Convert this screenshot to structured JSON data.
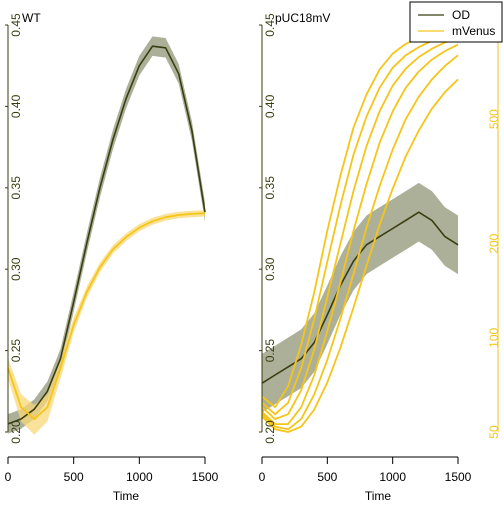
{
  "colors": {
    "od": "#3a3d10",
    "od_band": "#8a8e6e",
    "venus": "#f5c518",
    "venus_band": "#f8d878"
  },
  "legend": {
    "items": [
      {
        "label": "OD",
        "color": "#3a3d10"
      },
      {
        "label": "mVenus",
        "color": "#f5c518"
      }
    ],
    "placement": "top-right"
  },
  "chart_data": [
    {
      "type": "line",
      "title": "WT",
      "xlabel": "Time",
      "xlim": [
        0,
        1500
      ],
      "x_ticks": [
        "0",
        "500",
        "1000",
        "1500"
      ],
      "od_axis": {
        "lim": [
          0.2,
          0.45
        ],
        "ticks": [
          "0.20",
          "0.25",
          "0.30",
          "0.35",
          "0.40",
          "0.45"
        ]
      },
      "venus_axis": {
        "lim": [
          50,
          1000
        ]
      },
      "series": [
        {
          "name": "OD",
          "x": [
            0,
            100,
            200,
            300,
            400,
            500,
            600,
            700,
            800,
            900,
            1000,
            1100,
            1200,
            1300,
            1400,
            1500
          ],
          "y": [
            0.205,
            0.208,
            0.214,
            0.225,
            0.245,
            0.28,
            0.316,
            0.35,
            0.38,
            0.405,
            0.425,
            0.437,
            0.436,
            0.42,
            0.385,
            0.335
          ],
          "band": 0.006
        },
        {
          "name": "mVenus",
          "x": [
            0,
            100,
            200,
            300,
            400,
            500,
            600,
            700,
            800,
            900,
            1000,
            1100,
            1200,
            1300,
            1400,
            1500
          ],
          "y": [
            80,
            60,
            55,
            60,
            80,
            110,
            140,
            168,
            192,
            210,
            225,
            236,
            243,
            247,
            249,
            250
          ],
          "band": 6
        }
      ]
    },
    {
      "type": "line",
      "title": "pUC18mV",
      "xlabel": "Time",
      "xlim": [
        0,
        1500
      ],
      "x_ticks": [
        "0",
        "500",
        "1000",
        "1500"
      ],
      "od_axis": {
        "lim": [
          0.2,
          0.45
        ],
        "ticks": [
          "0.20",
          "0.25",
          "0.30",
          "0.35",
          "0.40",
          "0.45"
        ]
      },
      "venus_axis": {
        "lim": [
          50,
          1000
        ],
        "ticks": [
          "50",
          "100",
          "200",
          "500",
          "1000"
        ]
      },
      "series": [
        {
          "name": "OD",
          "x": [
            0,
            100,
            200,
            300,
            400,
            500,
            600,
            700,
            800,
            900,
            1000,
            1100,
            1200,
            1300,
            1400,
            1500
          ],
          "y": [
            0.23,
            0.235,
            0.24,
            0.245,
            0.255,
            0.272,
            0.29,
            0.305,
            0.315,
            0.32,
            0.325,
            0.33,
            0.335,
            0.33,
            0.32,
            0.315
          ],
          "band": 0.018
        },
        {
          "name": "mVenus",
          "x": [
            0,
            100,
            200,
            300,
            400,
            500,
            600,
            700,
            800,
            900,
            1000,
            1100,
            1200,
            1300,
            1400,
            1500
          ],
          "y": [
            65,
            60,
            70,
            95,
            140,
            220,
            330,
            470,
            600,
            720,
            810,
            870,
            910,
            940,
            960,
            975
          ]
        },
        {
          "name": "mVenus",
          "x": [
            0,
            100,
            200,
            300,
            400,
            500,
            600,
            700,
            800,
            900,
            1000,
            1100,
            1200,
            1300,
            1400,
            1500
          ],
          "y": [
            62,
            57,
            62,
            80,
            115,
            175,
            265,
            385,
            510,
            630,
            730,
            800,
            850,
            890,
            920,
            945
          ]
        },
        {
          "name": "mVenus",
          "x": [
            0,
            100,
            200,
            300,
            400,
            500,
            600,
            700,
            800,
            900,
            1000,
            1100,
            1200,
            1300,
            1400,
            1500
          ],
          "y": [
            60,
            55,
            57,
            68,
            92,
            135,
            200,
            295,
            410,
            530,
            640,
            725,
            790,
            840,
            880,
            910
          ]
        },
        {
          "name": "mVenus",
          "x": [
            0,
            100,
            200,
            300,
            400,
            500,
            600,
            700,
            800,
            900,
            1000,
            1100,
            1200,
            1300,
            1400,
            1500
          ],
          "y": [
            58,
            53,
            53,
            60,
            76,
            105,
            150,
            220,
            310,
            420,
            530,
            630,
            710,
            775,
            825,
            865
          ]
        },
        {
          "name": "mVenus",
          "x": [
            0,
            100,
            200,
            300,
            400,
            500,
            600,
            700,
            800,
            900,
            1000,
            1100,
            1200,
            1300,
            1400,
            1500
          ],
          "y": [
            57,
            52,
            51,
            55,
            66,
            85,
            115,
            160,
            225,
            305,
            400,
            500,
            590,
            670,
            740,
            800
          ]
        },
        {
          "name": "mVenus",
          "x": [
            0,
            100,
            200,
            300,
            400,
            500,
            600,
            700,
            800,
            900,
            1000,
            1100,
            1200,
            1300,
            1400,
            1500
          ],
          "y": [
            56,
            51,
            50,
            52,
            59,
            72,
            93,
            125,
            170,
            230,
            300,
            380,
            460,
            540,
            610,
            670
          ]
        }
      ]
    }
  ]
}
